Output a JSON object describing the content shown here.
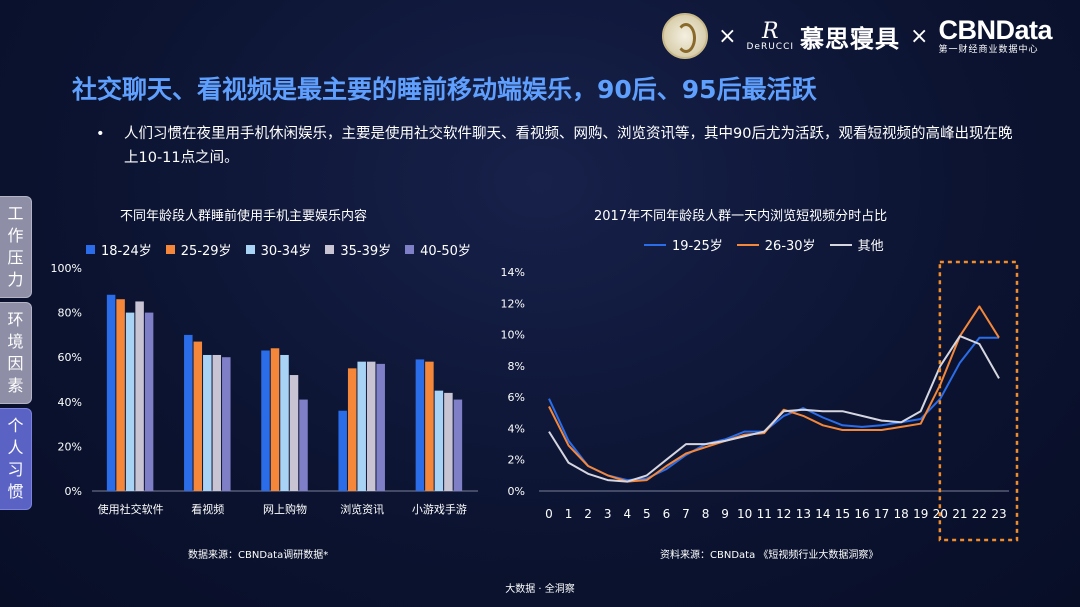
{
  "header": {
    "times_symbol": "×",
    "derucci_mark": "R",
    "derucci_text": "DeRUCCI",
    "brand_cn": "慕思寝具",
    "cbn_logo": "CBNData",
    "cbn_sub": "第一财经商业数据中心"
  },
  "title": "社交聊天、看视频是最主要的睡前移动端娱乐，90后、95后最活跃",
  "bullet": {
    "dot": "•",
    "text": "人们习惯在夜里用手机休闲娱乐，主要是使用社交软件聊天、看视频、网购、浏览资讯等，其中90后尤为活跃，观看短视频的高峰出现在晚上10-11点之间。"
  },
  "side_tabs": [
    {
      "label": "工作压力",
      "active": false
    },
    {
      "label": "环境因素",
      "active": false
    },
    {
      "label": "个人习惯",
      "active": true
    }
  ],
  "sources": {
    "left": "数据来源：CBNData调研数据*",
    "right": "资料来源：CBNData 《短视频行业大数据洞察》"
  },
  "footer": "大数据 · 全洞察",
  "colors": {
    "title": "#5fa0ff",
    "highlight_box": "#f08c2c"
  },
  "chart_data": [
    {
      "type": "bar",
      "title": "不同年龄段人群睡前使用手机主要娱乐内容",
      "categories": [
        "使用社交软件",
        "看视频",
        "网上购物",
        "浏览资讯",
        "小游戏手游"
      ],
      "series": [
        {
          "name": "18-24岁",
          "color": "#2b6de8",
          "values": [
            88,
            70,
            63,
            36,
            59
          ]
        },
        {
          "name": "25-29岁",
          "color": "#f4873a",
          "values": [
            86,
            67,
            64,
            55,
            58
          ]
        },
        {
          "name": "30-34岁",
          "color": "#a9d3f5",
          "values": [
            80,
            61,
            61,
            58,
            45
          ]
        },
        {
          "name": "35-39岁",
          "color": "#c9c4d4",
          "values": [
            85,
            61,
            52,
            58,
            44
          ]
        },
        {
          "name": "40-50岁",
          "color": "#7f7fc7",
          "values": [
            80,
            60,
            41,
            57,
            41
          ]
        }
      ],
      "y_ticks": [
        "0%",
        "20%",
        "40%",
        "60%",
        "80%",
        "100%"
      ],
      "ylim": [
        0,
        100
      ],
      "legend": "top"
    },
    {
      "type": "line",
      "title": "2017年不同年龄段人群一天内浏览短视频分时占比",
      "x": [
        0,
        1,
        2,
        3,
        4,
        5,
        6,
        7,
        8,
        9,
        10,
        11,
        12,
        13,
        14,
        15,
        16,
        17,
        18,
        19,
        20,
        21,
        22,
        23
      ],
      "series": [
        {
          "name": "19-25岁",
          "color": "#2b6de8",
          "values": [
            5.9,
            3.2,
            1.6,
            1.0,
            0.7,
            0.8,
            1.4,
            2.3,
            3.0,
            3.3,
            3.8,
            3.8,
            4.8,
            5.3,
            4.7,
            4.2,
            4.1,
            4.2,
            4.4,
            4.6,
            5.9,
            8.2,
            9.8,
            9.8
          ]
        },
        {
          "name": "26-30岁",
          "color": "#f4873a",
          "values": [
            5.4,
            2.9,
            1.6,
            1.0,
            0.6,
            0.7,
            1.6,
            2.4,
            2.8,
            3.2,
            3.6,
            3.7,
            5.2,
            4.8,
            4.2,
            3.9,
            3.9,
            3.9,
            4.1,
            4.3,
            6.8,
            9.9,
            11.8,
            9.8
          ]
        },
        {
          "name": "其他",
          "color": "#d6d6e0",
          "values": [
            3.8,
            1.8,
            1.1,
            0.7,
            0.6,
            1.0,
            2.0,
            3.0,
            3.0,
            3.2,
            3.5,
            3.8,
            5.1,
            5.2,
            5.1,
            5.1,
            4.8,
            4.5,
            4.4,
            5.1,
            8.0,
            9.9,
            9.4,
            7.2
          ]
        }
      ],
      "y_ticks": [
        "0%",
        "2%",
        "4%",
        "6%",
        "8%",
        "10%",
        "12%",
        "14%"
      ],
      "ylim": [
        0,
        14
      ],
      "legend": "top",
      "highlight_hours": [
        21,
        23
      ]
    }
  ]
}
